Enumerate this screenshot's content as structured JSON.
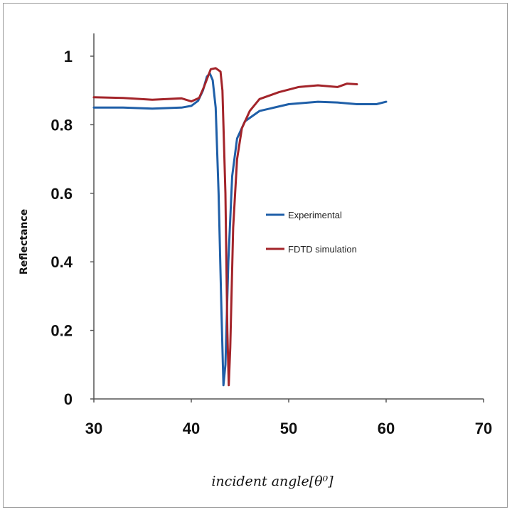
{
  "chart_data": {
    "type": "line",
    "title": "",
    "xlabel": "incident angle[θ⁰]",
    "ylabel": "Reflectance",
    "xlim": [
      30,
      70
    ],
    "ylim": [
      0,
      1
    ],
    "x_ticks": [
      30,
      40,
      50,
      60,
      70
    ],
    "y_ticks": [
      0,
      0.2,
      0.4,
      0.6,
      0.8,
      1
    ],
    "y_tick_labels": [
      "0",
      "0.2",
      "0.4",
      "0.6",
      "0.8",
      "1"
    ],
    "grid": false,
    "legend_position": "center-right",
    "series": [
      {
        "name": "Experimental",
        "color": "#1f5fa8",
        "points": [
          [
            30,
            0.85
          ],
          [
            33,
            0.85
          ],
          [
            36,
            0.847
          ],
          [
            39,
            0.85
          ],
          [
            40,
            0.855
          ],
          [
            40.7,
            0.87
          ],
          [
            41.2,
            0.9
          ],
          [
            41.6,
            0.94
          ],
          [
            41.9,
            0.95
          ],
          [
            42.2,
            0.93
          ],
          [
            42.5,
            0.85
          ],
          [
            42.8,
            0.6
          ],
          [
            43.1,
            0.25
          ],
          [
            43.3,
            0.04
          ],
          [
            43.5,
            0.1
          ],
          [
            43.8,
            0.4
          ],
          [
            44.2,
            0.65
          ],
          [
            44.7,
            0.76
          ],
          [
            45.5,
            0.81
          ],
          [
            47,
            0.84
          ],
          [
            50,
            0.86
          ],
          [
            53,
            0.867
          ],
          [
            55,
            0.865
          ],
          [
            57,
            0.86
          ],
          [
            59,
            0.86
          ],
          [
            60,
            0.867
          ]
        ]
      },
      {
        "name": "FDTD simulation",
        "color": "#a3242a",
        "points": [
          [
            30,
            0.88
          ],
          [
            33,
            0.878
          ],
          [
            36,
            0.873
          ],
          [
            39,
            0.877
          ],
          [
            40,
            0.868
          ],
          [
            40.8,
            0.878
          ],
          [
            41.3,
            0.91
          ],
          [
            41.7,
            0.94
          ],
          [
            42,
            0.962
          ],
          [
            42.5,
            0.965
          ],
          [
            43,
            0.955
          ],
          [
            43.2,
            0.9
          ],
          [
            43.5,
            0.6
          ],
          [
            43.7,
            0.2
          ],
          [
            43.85,
            0.04
          ],
          [
            44,
            0.15
          ],
          [
            44.3,
            0.5
          ],
          [
            44.7,
            0.7
          ],
          [
            45.2,
            0.79
          ],
          [
            46,
            0.84
          ],
          [
            47,
            0.875
          ],
          [
            49,
            0.895
          ],
          [
            51,
            0.91
          ],
          [
            53,
            0.915
          ],
          [
            55,
            0.91
          ],
          [
            56,
            0.92
          ],
          [
            57,
            0.918
          ]
        ]
      }
    ]
  }
}
